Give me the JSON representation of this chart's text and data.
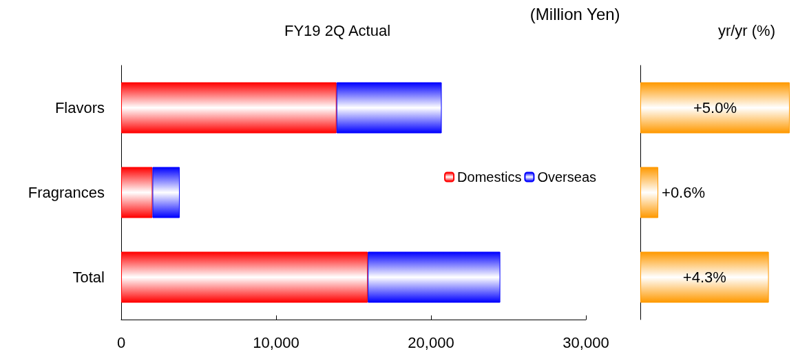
{
  "chart_data": [
    {
      "type": "bar",
      "title": "FY19 2Q Actual",
      "annotations": [
        "(Million Yen)"
      ],
      "orientation": "horizontal",
      "stacked": true,
      "categories": [
        "Flavors",
        "Fragrances",
        "Total"
      ],
      "series": [
        {
          "name": "Domestics",
          "color": "#ff0000",
          "values": [
            13900,
            2020,
            15920
          ]
        },
        {
          "name": "Overseas",
          "color": "#0000ff",
          "values": [
            6790,
            1760,
            8550
          ]
        }
      ],
      "xlim": [
        0,
        30000
      ],
      "xticks": [
        0,
        {
          "value": 10000,
          "label": "10,000"
        },
        {
          "value": 20000,
          "label": "20,000"
        },
        {
          "value": 30000,
          "label": "30,000"
        }
      ],
      "grid": false,
      "legend": "right"
    },
    {
      "type": "bar",
      "title": "yr/yr (%)",
      "orientation": "horizontal",
      "tick_labels": false,
      "categories": [
        null,
        null,
        null
      ],
      "values": [
        5.0,
        0.6,
        4.3
      ],
      "value_labels": [
        "+5.0%",
        "+0.6%",
        "+4.3%"
      ],
      "color": "#ff9900",
      "grid": false,
      "legend": false
    }
  ]
}
